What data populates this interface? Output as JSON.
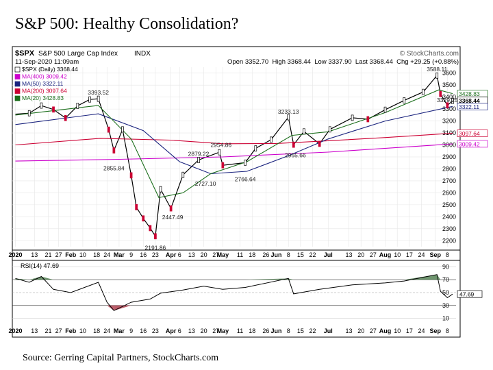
{
  "page": {
    "title": "S&P 500: Healthy Consolidation?",
    "source": "Source: Gerring Capital Partners, StockCharts.com"
  },
  "header": {
    "symbol": "$SPX",
    "name": "S&P 500 Large Cap Index",
    "exchange": "INDX",
    "brand": "© StockCharts.com",
    "date": "11-Sep-2020 11:09am",
    "ohlc": "Open 3352.70  High 3368.44  Low 3337.90  Last 3368.44  Chg +29.25 (+0.88%)"
  },
  "legend": [
    {
      "label": "$SPX (Daily) 3368.44",
      "color": "#000000"
    },
    {
      "label": "MA(400) 3009.42",
      "color": "#cc00cc"
    },
    {
      "label": "MA(50) 3322.11",
      "color": "#1a237e"
    },
    {
      "label": "MA(200) 3097.64",
      "color": "#cc0033"
    },
    {
      "label": "MA(20) 3428.83",
      "color": "#1b6e1b"
    }
  ],
  "chart_data": {
    "type": "line",
    "title": "S&P 500: Healthy Consolidation?",
    "price_ticks": [
      2200,
      2300,
      2400,
      2500,
      2600,
      2700,
      2800,
      2900,
      3000,
      3100,
      3200,
      3300,
      3400,
      3500,
      3600
    ],
    "ylim": [
      2150,
      3650
    ],
    "x_labels": [
      "2020",
      "13",
      "21",
      "27",
      "Feb",
      "10",
      "18",
      "24",
      "Mar",
      "9",
      "16",
      "23",
      "Apr",
      "6",
      "13",
      "20",
      "27",
      "May",
      "11",
      "18",
      "26",
      "Jun",
      "8",
      "15",
      "22",
      "Jul",
      "13",
      "20",
      "27",
      "Aug",
      "10",
      "17",
      "24",
      "Sep",
      "8"
    ],
    "x_bold": [
      "2020",
      "Feb",
      "Mar",
      "Apr",
      "May",
      "Jun",
      "Jul",
      "Aug",
      "Sep"
    ],
    "series": [
      {
        "name": "$SPX (Daily)",
        "color": "#000000",
        "x": [
          "2020-01-02",
          "2020-01-10",
          "2020-01-17",
          "2020-01-24",
          "2020-01-31",
          "2020-02-07",
          "2020-02-14",
          "2020-02-19",
          "2020-02-25",
          "2020-02-28",
          "2020-03-04",
          "2020-03-09",
          "2020-03-12",
          "2020-03-16",
          "2020-03-20",
          "2020-03-23",
          "2020-03-26",
          "2020-04-01",
          "2020-04-08",
          "2020-04-17",
          "2020-04-29",
          "2020-05-01",
          "2020-05-14",
          "2020-05-20",
          "2020-05-29",
          "2020-06-08",
          "2020-06-11",
          "2020-06-17",
          "2020-06-26",
          "2020-07-02",
          "2020-07-15",
          "2020-07-24",
          "2020-08-03",
          "2020-08-14",
          "2020-08-25",
          "2020-09-02",
          "2020-09-04",
          "2020-09-08",
          "2020-09-11"
        ],
        "y": [
          3257,
          3265,
          3329,
          3296,
          3225,
          3327,
          3380,
          3386,
          3128,
          2954,
          3130,
          2746,
          2480,
          2386,
          2305,
          2237,
          2630,
          2470,
          2750,
          2874,
          2939,
          2830,
          2852,
          2971,
          3044,
          3232,
          3002,
          3113,
          3009,
          3130,
          3227,
          3215,
          3294,
          3372,
          3443,
          3580,
          3426,
          3331,
          3368
        ]
      },
      {
        "name": "MA(400)",
        "color": "#cc00cc",
        "x": [
          "2020-01-02",
          "2020-03-02",
          "2020-05-01",
          "2020-07-01",
          "2020-09-11"
        ],
        "y": [
          2865,
          2880,
          2900,
          2940,
          3009
        ]
      },
      {
        "name": "MA(200)",
        "color": "#cc0033",
        "x": [
          "2020-01-02",
          "2020-02-20",
          "2020-04-01",
          "2020-05-01",
          "2020-06-01",
          "2020-07-01",
          "2020-08-01",
          "2020-09-11"
        ],
        "y": [
          3000,
          3055,
          3040,
          3010,
          3012,
          3035,
          3060,
          3098
        ]
      },
      {
        "name": "MA(50)",
        "color": "#1a237e",
        "x": [
          "2020-01-02",
          "2020-02-19",
          "2020-03-16",
          "2020-04-06",
          "2020-04-24",
          "2020-05-15",
          "2020-06-08",
          "2020-07-01",
          "2020-08-03",
          "2020-09-11"
        ],
        "y": [
          3170,
          3260,
          3120,
          2860,
          2760,
          2780,
          2910,
          3050,
          3200,
          3322
        ]
      },
      {
        "name": "MA(20)",
        "color": "#1b6e1b",
        "x": [
          "2020-01-02",
          "2020-02-19",
          "2020-03-09",
          "2020-03-25",
          "2020-04-08",
          "2020-04-24",
          "2020-05-15",
          "2020-06-10",
          "2020-07-01",
          "2020-08-03",
          "2020-09-03",
          "2020-09-11"
        ],
        "y": [
          3250,
          3330,
          3050,
          2560,
          2600,
          2760,
          2860,
          3080,
          3110,
          3270,
          3460,
          3429
        ]
      }
    ],
    "annotations": [
      {
        "label": "3393.52",
        "x": "2020-02-19",
        "y": 3393.52
      },
      {
        "label": "2855.84",
        "x": "2020-02-28",
        "y": 2855.84
      },
      {
        "label": "2191.86",
        "x": "2020-03-23",
        "y": 2191.86
      },
      {
        "label": "2447.49",
        "x": "2020-04-02",
        "y": 2447.49
      },
      {
        "label": "2879.22",
        "x": "2020-04-17",
        "y": 2879.22
      },
      {
        "label": "2727.10",
        "x": "2020-04-21",
        "y": 2727.1
      },
      {
        "label": "2954.86",
        "x": "2020-04-30",
        "y": 2954.86
      },
      {
        "label": "2766.64",
        "x": "2020-05-14",
        "y": 2766.64
      },
      {
        "label": "3233.13",
        "x": "2020-06-08",
        "y": 3233.13
      },
      {
        "label": "2965.66",
        "x": "2020-06-12",
        "y": 2965.66
      },
      {
        "label": "3588.11",
        "x": "2020-09-02",
        "y": 3588.11
      },
      {
        "label": "3329.25",
        "x": "2020-09-08",
        "y": 3329.25
      }
    ],
    "price_tags": [
      {
        "label": "3428.83",
        "value": 3428.83,
        "color": "#1b6e1b"
      },
      {
        "label": "3368.44",
        "value": 3368.44,
        "color": "#000000"
      },
      {
        "label": "3322.11",
        "value": 3322.11,
        "color": "#1a237e"
      },
      {
        "label": "3097.64",
        "value": 3097.64,
        "color": "#cc0033"
      },
      {
        "label": "3009.42",
        "value": 3009.42,
        "color": "#cc00cc"
      }
    ],
    "rsi": {
      "label": "RSI(14) 47.69",
      "ticks": [
        10,
        30,
        50,
        70,
        90
      ],
      "ylim": [
        0,
        100
      ],
      "last": "47.69",
      "x": [
        "2020-01-02",
        "2020-01-10",
        "2020-01-17",
        "2020-01-24",
        "2020-02-03",
        "2020-02-19",
        "2020-02-24",
        "2020-02-28",
        "2020-03-09",
        "2020-03-20",
        "2020-03-26",
        "2020-04-08",
        "2020-04-20",
        "2020-05-01",
        "2020-05-14",
        "2020-06-08",
        "2020-06-11",
        "2020-06-26",
        "2020-07-15",
        "2020-08-03",
        "2020-08-14",
        "2020-09-02",
        "2020-09-04",
        "2020-09-08",
        "2020-09-11"
      ],
      "y": [
        72,
        66,
        75,
        55,
        50,
        66,
        35,
        22,
        35,
        40,
        49,
        54,
        60,
        55,
        58,
        72,
        48,
        55,
        62,
        65,
        68,
        78,
        52,
        42,
        47.69
      ]
    }
  }
}
